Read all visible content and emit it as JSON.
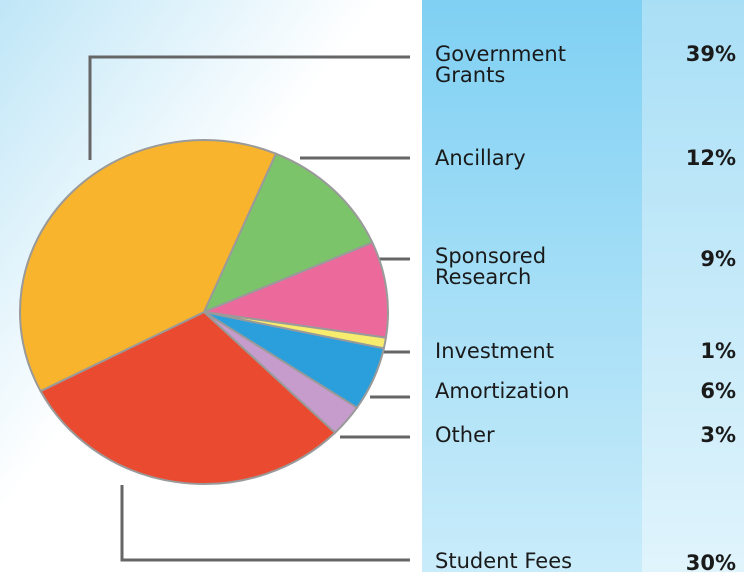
{
  "chart_data": {
    "type": "pie",
    "categories": [
      "Ancillary",
      "Sponsored Research",
      "Investment",
      "Amortization",
      "Other",
      "Student Fees",
      "Government Grants"
    ],
    "values": [
      12,
      9,
      1,
      6,
      3,
      30,
      39
    ],
    "value_labels": [
      "12%",
      "9%",
      "1%",
      "6%",
      "3%",
      "30%",
      "39%"
    ],
    "colors": [
      "#7cc46a",
      "#ec6a9b",
      "#f7ec6e",
      "#2a9fdc",
      "#c59ccc",
      "#ea4b30",
      "#f7b42c"
    ]
  }
}
